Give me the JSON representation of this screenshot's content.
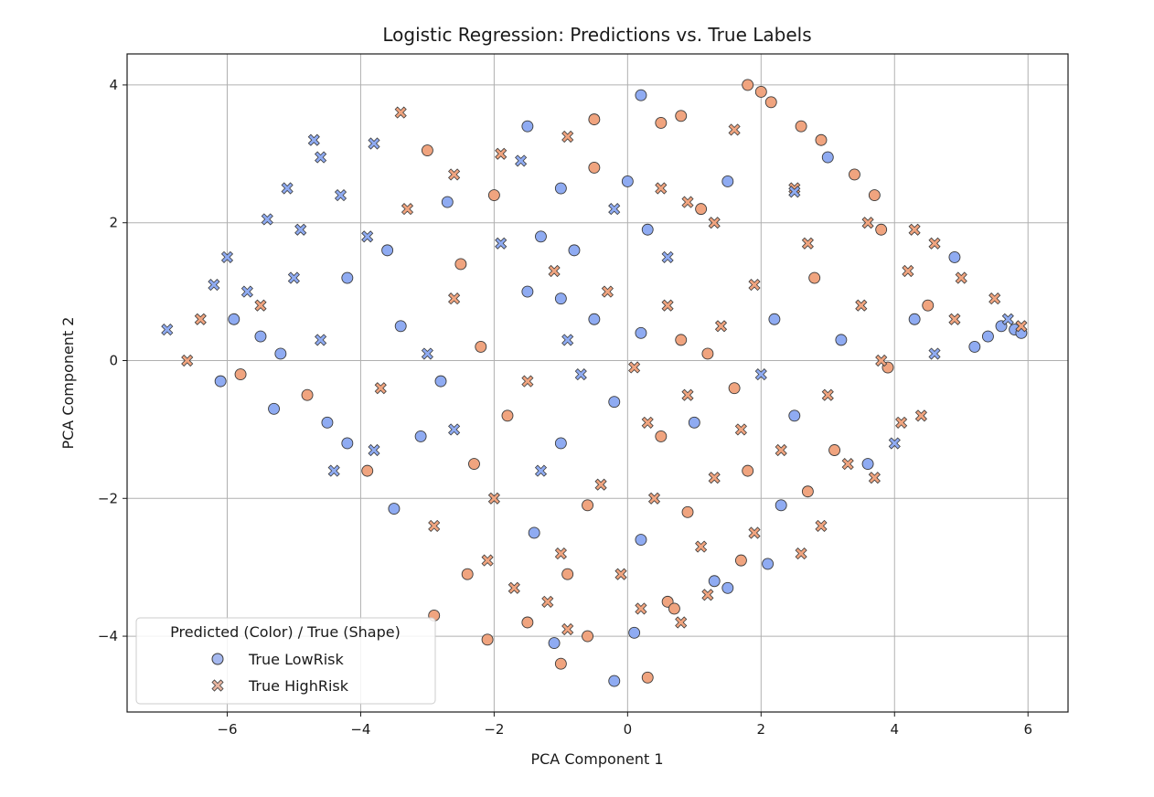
{
  "chart_data": {
    "type": "scatter",
    "title": "Logistic Regression: Predictions vs. True Labels",
    "xlabel": "PCA Component 1",
    "ylabel": "PCA Component 2",
    "xlim": [
      -7.5,
      6.6
    ],
    "ylim": [
      -5.1,
      4.45
    ],
    "x_ticks": [
      -6,
      -4,
      -2,
      0,
      2,
      4,
      6
    ],
    "y_ticks": [
      -4,
      -2,
      0,
      2,
      4
    ],
    "x_tick_labels": [
      "−6",
      "−4",
      "−2",
      "0",
      "2",
      "4",
      "6"
    ],
    "y_tick_labels": [
      "−4",
      "−2",
      "0",
      "2",
      "4"
    ],
    "grid": true,
    "legend": {
      "placement": "lower-left",
      "title": "Predicted (Color) / True (Shape)",
      "entries": [
        {
          "label": "True LowRisk",
          "marker": "circle",
          "color": "#a5b8ef"
        },
        {
          "label": "True HighRisk",
          "marker": "x",
          "color": "#e8b5a0"
        }
      ]
    },
    "colors": {
      "predicted_lowrisk": "#8fabf2",
      "predicted_highrisk": "#f0a47f",
      "edge": "#3a3a3a"
    },
    "series": [
      {
        "name": "True LowRisk",
        "marker": "circle",
        "points": [
          [
            0.2,
            3.85
          ],
          [
            -1.5,
            3.4
          ],
          [
            -3.0,
            3.05
          ],
          [
            0.5,
            3.45
          ],
          [
            -0.5,
            3.5
          ],
          [
            0.8,
            3.55
          ],
          [
            1.8,
            4.0
          ],
          [
            2.0,
            3.9
          ],
          [
            2.15,
            3.75
          ],
          [
            2.6,
            3.4
          ],
          [
            2.9,
            3.2
          ],
          [
            3.0,
            2.95
          ],
          [
            1.5,
            2.6
          ],
          [
            3.4,
            2.7
          ],
          [
            3.7,
            2.4
          ],
          [
            -5.9,
            0.6
          ],
          [
            -5.5,
            0.35
          ],
          [
            -5.2,
            0.1
          ],
          [
            -6.1,
            -0.3
          ],
          [
            -5.8,
            -0.2
          ],
          [
            -5.3,
            -0.7
          ],
          [
            -4.8,
            -0.5
          ],
          [
            -4.5,
            -0.9
          ],
          [
            -4.2,
            -1.2
          ],
          [
            -3.9,
            -1.6
          ],
          [
            -3.5,
            -2.15
          ],
          [
            -2.9,
            -3.7
          ],
          [
            -2.4,
            -3.1
          ],
          [
            -2.1,
            -4.05
          ],
          [
            -1.5,
            -3.8
          ],
          [
            -1.1,
            -4.1
          ],
          [
            -1.0,
            -4.4
          ],
          [
            -0.6,
            -4.0
          ],
          [
            0.1,
            -3.95
          ],
          [
            0.3,
            -4.6
          ],
          [
            -0.2,
            -4.65
          ],
          [
            0.6,
            -3.5
          ],
          [
            1.3,
            -3.2
          ],
          [
            1.5,
            -3.3
          ],
          [
            1.7,
            -2.9
          ],
          [
            2.1,
            -2.95
          ],
          [
            2.3,
            -2.1
          ],
          [
            2.7,
            -1.9
          ],
          [
            3.1,
            -1.3
          ],
          [
            3.6,
            -1.5
          ],
          [
            5.2,
            0.2
          ],
          [
            5.4,
            0.35
          ],
          [
            5.6,
            0.5
          ],
          [
            5.8,
            0.45
          ],
          [
            5.9,
            0.4
          ],
          [
            4.5,
            0.8
          ],
          [
            4.9,
            1.5
          ],
          [
            3.8,
            1.9
          ],
          [
            -2.0,
            2.4
          ],
          [
            -1.0,
            2.5
          ],
          [
            -0.5,
            2.8
          ],
          [
            0.0,
            2.6
          ],
          [
            -2.7,
            2.3
          ],
          [
            -3.6,
            1.6
          ],
          [
            -4.2,
            1.2
          ],
          [
            -1.5,
            1.0
          ],
          [
            -1.0,
            0.9
          ],
          [
            -0.5,
            0.6
          ],
          [
            0.2,
            0.4
          ],
          [
            0.8,
            0.3
          ],
          [
            1.2,
            0.1
          ],
          [
            -2.2,
            0.2
          ],
          [
            -2.8,
            -0.3
          ],
          [
            -3.4,
            0.5
          ],
          [
            -1.8,
            -0.8
          ],
          [
            -1.0,
            -1.2
          ],
          [
            -0.2,
            -0.6
          ],
          [
            0.5,
            -1.1
          ],
          [
            1.0,
            -0.9
          ],
          [
            1.6,
            -0.4
          ],
          [
            2.2,
            0.6
          ],
          [
            2.8,
            1.2
          ],
          [
            3.2,
            0.3
          ],
          [
            3.9,
            -0.1
          ],
          [
            4.3,
            0.6
          ],
          [
            -0.8,
            1.6
          ],
          [
            0.3,
            1.9
          ],
          [
            1.1,
            2.2
          ],
          [
            -1.3,
            1.8
          ],
          [
            -2.5,
            1.4
          ],
          [
            0.9,
            -2.2
          ],
          [
            0.2,
            -2.6
          ],
          [
            -0.6,
            -2.1
          ],
          [
            -1.4,
            -2.5
          ],
          [
            1.8,
            -1.6
          ],
          [
            2.5,
            -0.8
          ],
          [
            -3.1,
            -1.1
          ],
          [
            -2.3,
            -1.5
          ],
          [
            -0.9,
            -3.1
          ],
          [
            0.7,
            -3.6
          ]
        ]
      },
      {
        "name": "True HighRisk",
        "marker": "x",
        "points": [
          [
            -3.4,
            3.6
          ],
          [
            -4.7,
            3.2
          ],
          [
            -4.6,
            2.95
          ],
          [
            -3.8,
            3.15
          ],
          [
            -0.9,
            3.25
          ],
          [
            -1.9,
            3.0
          ],
          [
            -5.1,
            2.5
          ],
          [
            -4.3,
            2.4
          ],
          [
            -5.4,
            2.05
          ],
          [
            -4.9,
            1.9
          ],
          [
            -6.9,
            0.45
          ],
          [
            -6.6,
            0.0
          ],
          [
            -6.2,
            1.1
          ],
          [
            -5.7,
            1.0
          ],
          [
            -5.0,
            1.2
          ],
          [
            -6.4,
            0.6
          ],
          [
            -6.0,
            1.5
          ],
          [
            -5.5,
            0.8
          ],
          [
            -4.4,
            -1.6
          ],
          [
            -3.8,
            -1.3
          ],
          [
            -2.9,
            -2.4
          ],
          [
            -2.1,
            -2.9
          ],
          [
            -1.7,
            -3.3
          ],
          [
            -1.2,
            -3.5
          ],
          [
            -0.9,
            -3.9
          ],
          [
            0.2,
            -3.6
          ],
          [
            0.8,
            -3.8
          ],
          [
            1.2,
            -3.4
          ],
          [
            1.9,
            -2.5
          ],
          [
            2.6,
            -2.8
          ],
          [
            2.9,
            -2.4
          ],
          [
            3.3,
            -1.5
          ],
          [
            3.7,
            -1.7
          ],
          [
            4.1,
            -0.9
          ],
          [
            4.4,
            -0.8
          ],
          [
            4.0,
            -1.2
          ],
          [
            1.6,
            3.35
          ],
          [
            2.5,
            2.5
          ],
          [
            2.5,
            2.45
          ],
          [
            1.3,
            2.0
          ],
          [
            3.6,
            2.0
          ],
          [
            4.3,
            1.9
          ],
          [
            4.6,
            1.7
          ],
          [
            5.0,
            1.2
          ],
          [
            5.5,
            0.9
          ],
          [
            5.7,
            0.6
          ],
          [
            5.9,
            0.5
          ],
          [
            0.5,
            2.5
          ],
          [
            0.9,
            2.3
          ],
          [
            -0.2,
            2.2
          ],
          [
            -1.6,
            2.9
          ],
          [
            -2.6,
            2.7
          ],
          [
            -3.3,
            2.2
          ],
          [
            -3.9,
            1.8
          ],
          [
            -1.1,
            1.3
          ],
          [
            -0.3,
            1.0
          ],
          [
            0.6,
            0.8
          ],
          [
            1.4,
            0.5
          ],
          [
            2.0,
            -0.2
          ],
          [
            -2.6,
            0.9
          ],
          [
            -3.0,
            0.1
          ],
          [
            -3.7,
            -0.4
          ],
          [
            -4.6,
            0.3
          ],
          [
            -1.5,
            -0.3
          ],
          [
            -0.7,
            -0.2
          ],
          [
            0.1,
            -0.1
          ],
          [
            0.9,
            -0.5
          ],
          [
            1.7,
            -1.0
          ],
          [
            2.3,
            -1.3
          ],
          [
            3.0,
            -0.5
          ],
          [
            3.5,
            0.8
          ],
          [
            4.6,
            0.1
          ],
          [
            4.9,
            0.6
          ],
          [
            -0.4,
            -1.8
          ],
          [
            0.4,
            -2.0
          ],
          [
            1.1,
            -2.7
          ],
          [
            -1.0,
            -2.8
          ],
          [
            -2.0,
            -2.0
          ],
          [
            -2.6,
            -1.0
          ],
          [
            -0.1,
            -3.1
          ],
          [
            0.6,
            1.5
          ],
          [
            1.9,
            1.1
          ],
          [
            2.7,
            1.7
          ],
          [
            -1.9,
            1.7
          ],
          [
            -0.9,
            0.3
          ],
          [
            0.3,
            -0.9
          ],
          [
            1.3,
            -1.7
          ],
          [
            -1.3,
            -1.6
          ],
          [
            3.8,
            0.0
          ],
          [
            4.2,
            1.3
          ]
        ]
      }
    ],
    "predicted_highrisk": [
      [
        -3.4,
        3.6
      ],
      [
        -1.9,
        3.0
      ],
      [
        -0.9,
        3.25
      ],
      [
        1.6,
        3.35
      ],
      [
        2.5,
        2.5
      ],
      [
        -6.6,
        0.0
      ],
      [
        -5.5,
        0.8
      ],
      [
        -6.4,
        0.6
      ],
      [
        -2.9,
        -2.4
      ],
      [
        -2.1,
        -2.9
      ],
      [
        -1.7,
        -3.3
      ],
      [
        -1.2,
        -3.5
      ],
      [
        -0.9,
        -3.9
      ],
      [
        0.2,
        -3.6
      ],
      [
        0.8,
        -3.8
      ],
      [
        1.2,
        -3.4
      ],
      [
        1.9,
        -2.5
      ],
      [
        2.6,
        -2.8
      ],
      [
        2.9,
        -2.4
      ],
      [
        3.3,
        -1.5
      ],
      [
        3.7,
        -1.7
      ],
      [
        4.1,
        -0.9
      ],
      [
        4.4,
        -0.8
      ],
      [
        1.3,
        2.0
      ],
      [
        3.6,
        2.0
      ],
      [
        4.3,
        1.9
      ],
      [
        4.6,
        1.7
      ],
      [
        5.0,
        1.2
      ],
      [
        5.5,
        0.9
      ],
      [
        5.9,
        0.5
      ],
      [
        0.5,
        2.5
      ],
      [
        0.9,
        2.3
      ],
      [
        -2.6,
        2.7
      ],
      [
        -3.3,
        2.2
      ],
      [
        -1.1,
        1.3
      ],
      [
        0.6,
        0.8
      ],
      [
        1.4,
        0.5
      ],
      [
        -2.6,
        0.9
      ],
      [
        -3.7,
        -0.4
      ],
      [
        -1.5,
        -0.3
      ],
      [
        0.1,
        -0.1
      ],
      [
        0.9,
        -0.5
      ],
      [
        1.7,
        -1.0
      ],
      [
        2.3,
        -1.3
      ],
      [
        3.0,
        -0.5
      ],
      [
        3.5,
        0.8
      ],
      [
        4.9,
        0.6
      ],
      [
        -0.4,
        -1.8
      ],
      [
        0.4,
        -2.0
      ],
      [
        1.1,
        -2.7
      ],
      [
        -1.0,
        -2.8
      ],
      [
        -2.0,
        -2.0
      ],
      [
        -0.1,
        -3.1
      ],
      [
        1.9,
        1.1
      ],
      [
        2.7,
        1.7
      ],
      [
        0.3,
        -0.9
      ],
      [
        1.3,
        -1.7
      ],
      [
        3.8,
        0.0
      ],
      [
        4.2,
        1.3
      ],
      [
        -0.3,
        1.0
      ],
      [
        0.5,
        3.45
      ],
      [
        -0.5,
        3.5
      ],
      [
        0.8,
        3.55
      ],
      [
        1.8,
        4.0
      ],
      [
        2.0,
        3.9
      ],
      [
        2.15,
        3.75
      ],
      [
        2.6,
        3.4
      ],
      [
        2.9,
        3.2
      ],
      [
        3.4,
        2.7
      ],
      [
        3.7,
        2.4
      ],
      [
        -3.0,
        3.05
      ],
      [
        -5.8,
        -0.2
      ],
      [
        -4.8,
        -0.5
      ],
      [
        -3.9,
        -1.6
      ],
      [
        -2.9,
        -3.7
      ],
      [
        -2.4,
        -3.1
      ],
      [
        -2.1,
        -4.05
      ],
      [
        -1.5,
        -3.8
      ],
      [
        -1.0,
        -4.4
      ],
      [
        -0.6,
        -4.0
      ],
      [
        0.3,
        -4.6
      ],
      [
        0.6,
        -3.5
      ],
      [
        1.7,
        -2.9
      ],
      [
        2.7,
        -1.9
      ],
      [
        3.1,
        -1.3
      ],
      [
        4.5,
        0.8
      ],
      [
        3.8,
        1.9
      ],
      [
        -2.0,
        2.4
      ],
      [
        -0.5,
        2.8
      ],
      [
        0.8,
        0.3
      ],
      [
        1.2,
        0.1
      ],
      [
        -2.2,
        0.2
      ],
      [
        -1.8,
        -0.8
      ],
      [
        0.5,
        -1.1
      ],
      [
        1.6,
        -0.4
      ],
      [
        2.8,
        1.2
      ],
      [
        3.9,
        -0.1
      ],
      [
        1.1,
        2.2
      ],
      [
        -2.5,
        1.4
      ],
      [
        0.9,
        -2.2
      ],
      [
        -0.6,
        -2.1
      ],
      [
        1.8,
        -1.6
      ],
      [
        -2.3,
        -1.5
      ],
      [
        -0.9,
        -3.1
      ],
      [
        0.7,
        -3.6
      ]
    ]
  }
}
